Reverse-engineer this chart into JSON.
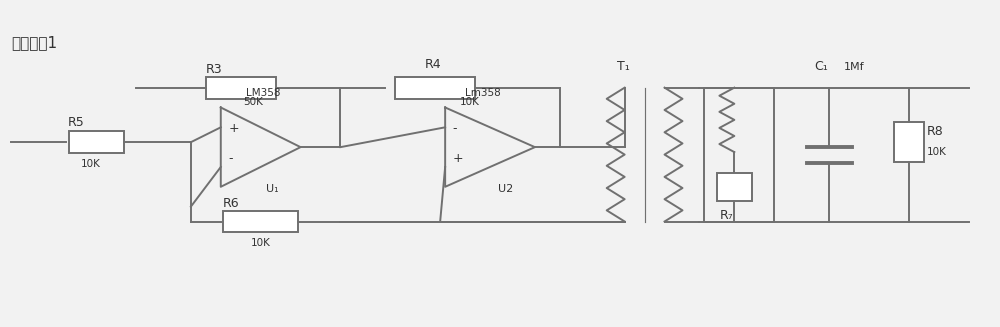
{
  "bg_color": "#f2f2f2",
  "line_color": "#707070",
  "text_color": "#333333",
  "lw": 1.4,
  "figsize": [
    10.0,
    3.27
  ],
  "dpi": 100,
  "title": "同步数据1",
  "xlim": [
    0,
    100
  ],
  "ylim": [
    0,
    32.7
  ],
  "u1_label": "LM358",
  "u2_label": "Lm358",
  "u1_name": "U₁",
  "u2_name": "U2",
  "t1_name": "T₁",
  "c1_name": "C₁",
  "c1_val": "1Mf",
  "r3_val": "50K",
  "r4_val": "10K",
  "r5_val": "10K",
  "r6_val": "10K",
  "r8_val": "10K"
}
